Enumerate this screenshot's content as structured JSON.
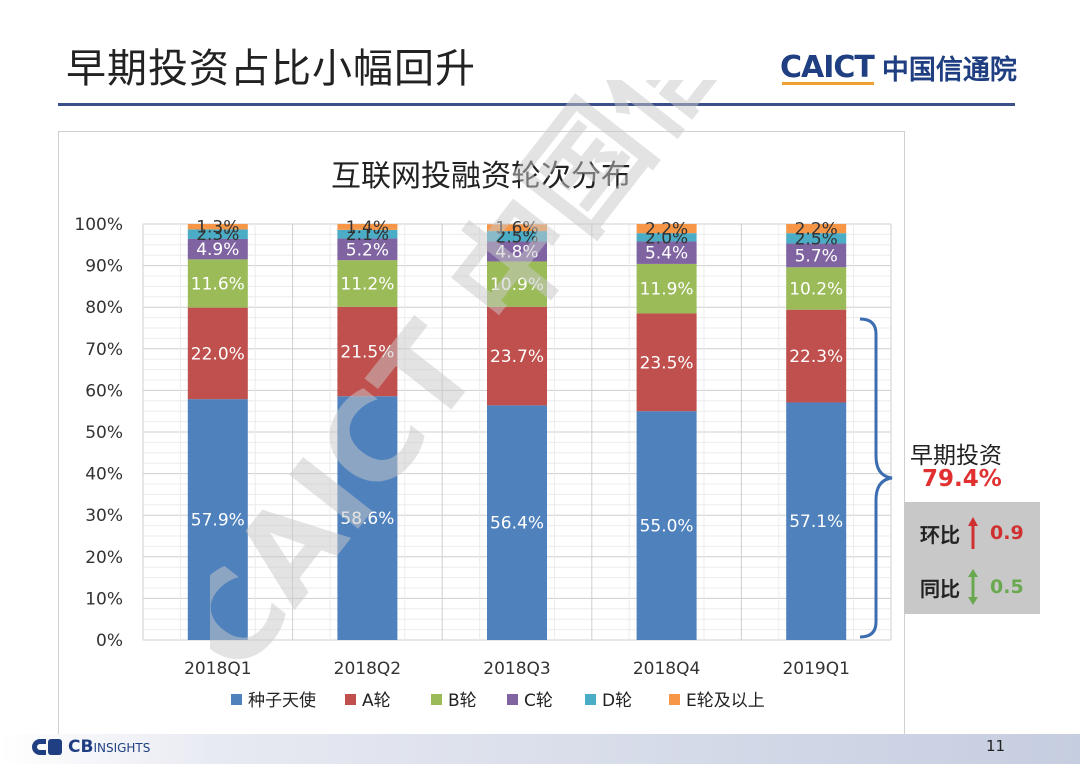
{
  "slide": {
    "title": "早期投资占比小幅回升",
    "logo_caict": "CAICT",
    "logo_cn": "中国信通院",
    "page_number": "11",
    "footer_logo_cb": "CB",
    "footer_logo_insights": "INSIGHTS",
    "watermark": "CAICT 中国信通院"
  },
  "chart_data": {
    "type": "bar",
    "stacked": true,
    "title": "互联网投融资轮次分布",
    "categories": [
      "2018Q1",
      "2018Q2",
      "2018Q3",
      "2018Q4",
      "2019Q1"
    ],
    "y_ticks": [
      "0%",
      "10%",
      "20%",
      "30%",
      "40%",
      "50%",
      "60%",
      "70%",
      "80%",
      "90%",
      "100%"
    ],
    "ylim": [
      0,
      100
    ],
    "grid": true,
    "legend_position": "bottom",
    "series": [
      {
        "name": "种子天使",
        "color": "#4f81bd",
        "values": [
          57.9,
          58.6,
          56.4,
          55.0,
          57.1
        ],
        "labels": [
          "57.9%",
          "58.6%",
          "56.4%",
          "55.0%",
          "57.1%"
        ],
        "label_color": "#ffffff"
      },
      {
        "name": "A轮",
        "color": "#c0504d",
        "values": [
          22.0,
          21.5,
          23.7,
          23.5,
          22.3
        ],
        "labels": [
          "22.0%",
          "21.5%",
          "23.7%",
          "23.5%",
          "22.3%"
        ],
        "label_color": "#ffffff"
      },
      {
        "name": "B轮",
        "color": "#9bbb59",
        "values": [
          11.6,
          11.2,
          10.9,
          11.9,
          10.2
        ],
        "labels": [
          "11.6%",
          "11.2%",
          "10.9%",
          "11.9%",
          "10.2%"
        ],
        "label_color": "#ffffff"
      },
      {
        "name": "C轮",
        "color": "#8064a2",
        "values": [
          4.9,
          5.2,
          4.8,
          5.4,
          5.7
        ],
        "labels": [
          "4.9%",
          "5.2%",
          "4.8%",
          "5.4%",
          "5.7%"
        ],
        "label_color": "#ffffff"
      },
      {
        "name": "D轮",
        "color": "#4bacc6",
        "values": [
          2.3,
          2.1,
          2.5,
          2.0,
          2.5
        ],
        "labels": [
          "2.3%",
          "2.1%",
          "2.5%",
          "2.0%",
          "2.5%"
        ],
        "label_color": "#333333"
      },
      {
        "name": "E轮及以上",
        "color": "#f79646",
        "values": [
          1.3,
          1.4,
          1.6,
          2.2,
          2.2
        ],
        "labels": [
          "1.3%",
          "1.4%",
          "1.6%",
          "2.2%",
          "2.2%"
        ],
        "label_color": "#333333"
      }
    ]
  },
  "annotation": {
    "early_label": "早期投资",
    "early_value": "79.4%",
    "qoq_label": "环比",
    "qoq_value": "0.9",
    "qoq_color": "#d03030",
    "yoy_label": "同比",
    "yoy_value": "0.5",
    "yoy_color": "#6aa84f"
  }
}
